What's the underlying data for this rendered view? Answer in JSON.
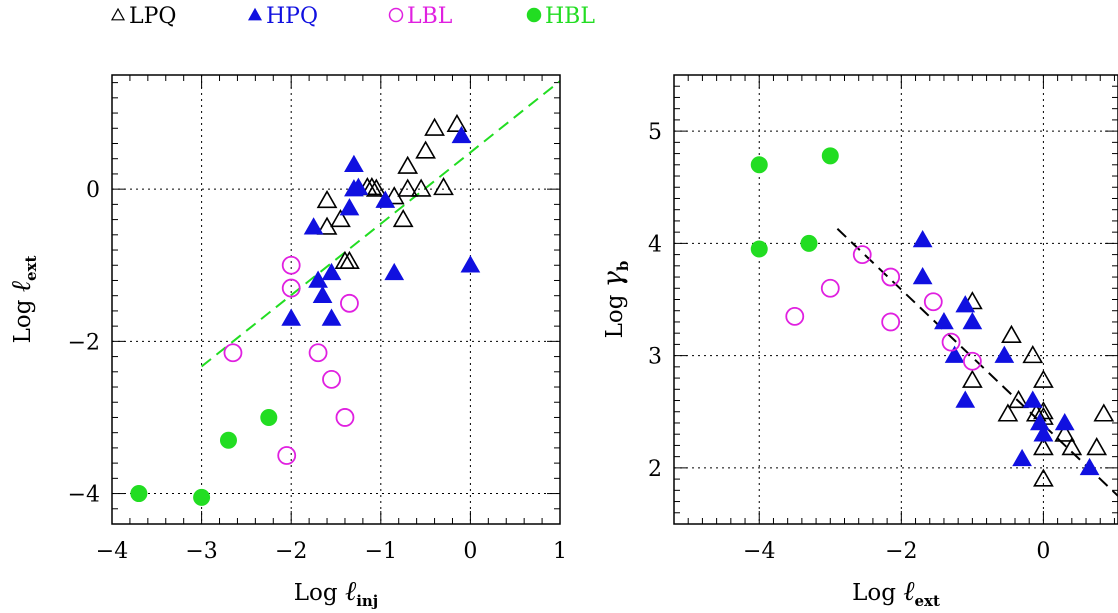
{
  "legend": [
    {
      "label": "LPQ",
      "color": "#000000",
      "marker": "open-triangle"
    },
    {
      "label": "HPQ",
      "color": "#1010e0",
      "marker": "filled-triangle"
    },
    {
      "label": "LBL",
      "color": "#e020e0",
      "marker": "open-circle"
    },
    {
      "label": "HBL",
      "color": "#22dd22",
      "marker": "filled-circle"
    }
  ],
  "colors": {
    "LPQ": "#000000",
    "HPQ": "#1010e0",
    "LBL": "#e020e0",
    "HBL": "#22dd22",
    "fit_left": "#22dd22",
    "fit_right": "#000000"
  },
  "chart_data": [
    {
      "type": "scatter",
      "xlabel": {
        "prefix": "Log ",
        "symbol": "ℓ",
        "sub": "inj"
      },
      "ylabel": {
        "prefix": "Log ",
        "symbol": "ℓ",
        "sub": "ext"
      },
      "xlim": [
        -4,
        1
      ],
      "ylim": [
        -4.4,
        1.5
      ],
      "xticks": [
        -4,
        -3,
        -2,
        -1,
        0,
        1
      ],
      "xtick_labels": [
        "−4",
        "−3",
        "−2",
        "−1",
        "0",
        "1"
      ],
      "yticks": [
        -4,
        -2,
        0
      ],
      "ytick_labels": [
        "−4",
        "−2",
        "0"
      ],
      "grid": true,
      "fit_line": {
        "style": "dashed",
        "color": "green",
        "x": [
          -3,
          1
        ],
        "y": [
          -2.33,
          1.42
        ]
      },
      "series": [
        {
          "name": "LPQ",
          "points": [
            [
              -1.6,
              -0.15
            ],
            [
              -1.6,
              -0.5
            ],
            [
              -1.45,
              -0.4
            ],
            [
              -1.4,
              -0.95
            ],
            [
              -1.35,
              -0.95
            ],
            [
              -1.15,
              0.02
            ],
            [
              -1.1,
              0.02
            ],
            [
              -1.05,
              0.0
            ],
            [
              -0.85,
              -0.1
            ],
            [
              -0.75,
              -0.4
            ],
            [
              -0.7,
              0.0
            ],
            [
              -0.7,
              0.3
            ],
            [
              -0.55,
              0.0
            ],
            [
              -0.5,
              0.5
            ],
            [
              -0.4,
              0.8
            ],
            [
              -0.3,
              0.02
            ],
            [
              -0.15,
              0.85
            ]
          ]
        },
        {
          "name": "HPQ",
          "points": [
            [
              -2.0,
              -1.7
            ],
            [
              -1.75,
              -0.5
            ],
            [
              -1.7,
              -1.2
            ],
            [
              -1.65,
              -1.4
            ],
            [
              -1.55,
              -1.1
            ],
            [
              -1.55,
              -1.7
            ],
            [
              -1.35,
              -0.25
            ],
            [
              -1.3,
              0.32
            ],
            [
              -1.3,
              0.0
            ],
            [
              -1.25,
              0.02
            ],
            [
              -0.95,
              -0.15
            ],
            [
              -0.85,
              -1.1
            ],
            [
              -0.1,
              0.7
            ],
            [
              0.0,
              -1.0
            ]
          ]
        },
        {
          "name": "LBL",
          "points": [
            [
              -2.65,
              -2.15
            ],
            [
              -2.05,
              -3.5
            ],
            [
              -2.0,
              -1.0
            ],
            [
              -2.0,
              -1.3
            ],
            [
              -1.7,
              -2.15
            ],
            [
              -1.55,
              -2.5
            ],
            [
              -1.4,
              -3.0
            ],
            [
              -1.35,
              -1.5
            ]
          ]
        },
        {
          "name": "HBL",
          "points": [
            [
              -3.7,
              -4.0
            ],
            [
              -3.0,
              -4.05
            ],
            [
              -2.7,
              -3.3
            ],
            [
              -2.25,
              -3.0
            ]
          ]
        }
      ]
    },
    {
      "type": "scatter",
      "xlabel": {
        "prefix": "Log ",
        "symbol": "ℓ",
        "sub": "ext"
      },
      "ylabel": {
        "prefix": "Log ",
        "symbol": "γ",
        "sub": "b"
      },
      "xlim": [
        -5.2,
        1.05
      ],
      "ylim": [
        1.5,
        5.5
      ],
      "xticks": [
        -4,
        -2,
        0
      ],
      "xtick_labels": [
        "−4",
        "−2",
        "0"
      ],
      "yticks": [
        2,
        3,
        4,
        5
      ],
      "ytick_labels": [
        "2",
        "3",
        "4",
        "5"
      ],
      "grid": true,
      "fit_line": {
        "style": "dashed",
        "color": "black",
        "x": [
          -2.9,
          1.05
        ],
        "y": [
          4.13,
          1.75
        ]
      },
      "series": [
        {
          "name": "LPQ",
          "points": [
            [
              -1.0,
              3.48
            ],
            [
              -1.0,
              2.78
            ],
            [
              -0.5,
              2.48
            ],
            [
              -0.45,
              3.18
            ],
            [
              -0.35,
              2.6
            ],
            [
              -0.15,
              3.0
            ],
            [
              -0.1,
              2.48
            ],
            [
              0.0,
              2.78
            ],
            [
              0.0,
              2.5
            ],
            [
              0.0,
              2.45
            ],
            [
              0.0,
              2.18
            ],
            [
              0.0,
              1.9
            ],
            [
              0.3,
              2.3
            ],
            [
              0.4,
              2.18
            ],
            [
              0.75,
              2.18
            ],
            [
              0.85,
              2.48
            ]
          ]
        },
        {
          "name": "HPQ",
          "points": [
            [
              -1.7,
              4.03
            ],
            [
              -1.7,
              3.7
            ],
            [
              -1.4,
              3.3
            ],
            [
              -1.25,
              3.0
            ],
            [
              -1.1,
              3.45
            ],
            [
              -1.1,
              2.6
            ],
            [
              -1.0,
              3.3
            ],
            [
              -0.55,
              3.0
            ],
            [
              -0.3,
              2.08
            ],
            [
              -0.15,
              2.6
            ],
            [
              -0.05,
              2.4
            ],
            [
              0.0,
              2.3
            ],
            [
              0.0,
              2.3
            ],
            [
              0.3,
              2.4
            ],
            [
              0.65,
              2.0
            ]
          ]
        },
        {
          "name": "LBL",
          "points": [
            [
              -3.5,
              3.35
            ],
            [
              -3.0,
              3.6
            ],
            [
              -2.55,
              3.9
            ],
            [
              -2.15,
              3.7
            ],
            [
              -2.15,
              3.3
            ],
            [
              -1.55,
              3.48
            ],
            [
              -1.3,
              3.12
            ],
            [
              -1.0,
              2.95
            ]
          ]
        },
        {
          "name": "HBL",
          "points": [
            [
              -4.0,
              4.7
            ],
            [
              -4.0,
              3.95
            ],
            [
              -3.3,
              4.0
            ],
            [
              -3.0,
              4.78
            ]
          ]
        }
      ]
    }
  ]
}
